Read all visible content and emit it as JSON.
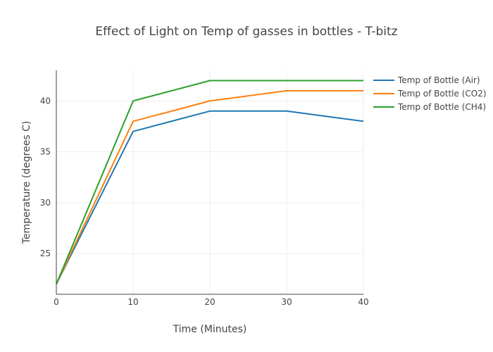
{
  "chart_data": {
    "type": "line",
    "title": "Effect of Light on Temp of gasses in bottles - T-bitz",
    "xlabel": "Time (Minutes)",
    "ylabel": "Temperature (degrees C)",
    "x": [
      0,
      10,
      20,
      30,
      40
    ],
    "xlim": [
      0,
      40
    ],
    "ylim": [
      21,
      43
    ],
    "xticks": [
      0,
      10,
      20,
      30,
      40
    ],
    "yticks": [
      25,
      30,
      35,
      40
    ],
    "grid": true,
    "legend_position": "top-right",
    "series": [
      {
        "name": "Temp of Bottle (Air)",
        "color": "#1f77b4",
        "values": [
          22,
          37,
          39,
          39,
          38
        ]
      },
      {
        "name": "Temp of Bottle (CO2)",
        "color": "#ff7f0e",
        "values": [
          22,
          38,
          40,
          41,
          41
        ]
      },
      {
        "name": "Temp of Bottle (CH4)",
        "color": "#2ca02c",
        "values": [
          22,
          40,
          42,
          42,
          42
        ]
      }
    ]
  }
}
